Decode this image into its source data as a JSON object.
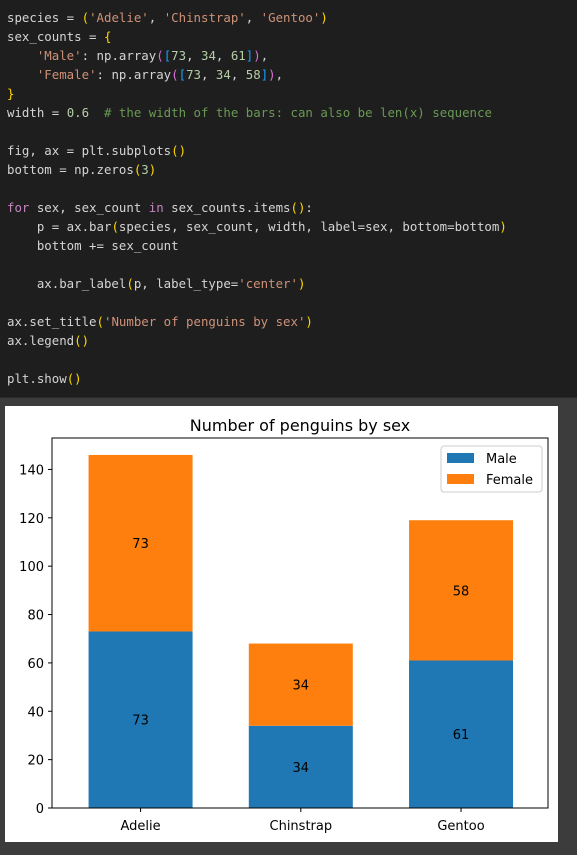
{
  "code": {
    "lines": [
      [
        [
          "plain",
          "species = "
        ],
        [
          "b1",
          "("
        ],
        [
          "str",
          "'Adelie'"
        ],
        [
          "plain",
          ", "
        ],
        [
          "str",
          "'Chinstrap'"
        ],
        [
          "plain",
          ", "
        ],
        [
          "str",
          "'Gentoo'"
        ],
        [
          "b1",
          ")"
        ]
      ],
      [
        [
          "plain",
          "sex_counts = "
        ],
        [
          "b1",
          "{"
        ]
      ],
      [
        [
          "plain",
          "    "
        ],
        [
          "str",
          "'Male'"
        ],
        [
          "plain",
          ": np.array"
        ],
        [
          "b2",
          "("
        ],
        [
          "b3",
          "["
        ],
        [
          "num",
          "73"
        ],
        [
          "plain",
          ", "
        ],
        [
          "num",
          "34"
        ],
        [
          "plain",
          ", "
        ],
        [
          "num",
          "61"
        ],
        [
          "b3",
          "]"
        ],
        [
          "b2",
          ")"
        ],
        [
          "plain",
          ","
        ]
      ],
      [
        [
          "plain",
          "    "
        ],
        [
          "str",
          "'Female'"
        ],
        [
          "plain",
          ": np.array"
        ],
        [
          "b2",
          "("
        ],
        [
          "b3",
          "["
        ],
        [
          "num",
          "73"
        ],
        [
          "plain",
          ", "
        ],
        [
          "num",
          "34"
        ],
        [
          "plain",
          ", "
        ],
        [
          "num",
          "58"
        ],
        [
          "b3",
          "]"
        ],
        [
          "b2",
          ")"
        ],
        [
          "plain",
          ","
        ]
      ],
      [
        [
          "b1",
          "}"
        ]
      ],
      [
        [
          "plain",
          "width = "
        ],
        [
          "num",
          "0.6"
        ],
        [
          "plain",
          "  "
        ],
        [
          "cmt",
          "# the width of the bars: can also be len(x) sequence"
        ]
      ],
      [],
      [
        [
          "plain",
          "fig, ax = plt.subplots"
        ],
        [
          "b1",
          "()"
        ]
      ],
      [
        [
          "plain",
          "bottom = np.zeros"
        ],
        [
          "b1",
          "("
        ],
        [
          "num",
          "3"
        ],
        [
          "b1",
          ")"
        ]
      ],
      [],
      [
        [
          "kw",
          "for"
        ],
        [
          "plain",
          " sex, sex_count "
        ],
        [
          "kw",
          "in"
        ],
        [
          "plain",
          " sex_counts.items"
        ],
        [
          "b1",
          "()"
        ],
        [
          "plain",
          ":"
        ]
      ],
      [
        [
          "plain",
          "    p = ax.bar"
        ],
        [
          "b1",
          "("
        ],
        [
          "plain",
          "species, sex_count, width, label=sex, bottom=bottom"
        ],
        [
          "b1",
          ")"
        ]
      ],
      [
        [
          "plain",
          "    bottom += sex_count"
        ]
      ],
      [],
      [
        [
          "plain",
          "    ax.bar_label"
        ],
        [
          "b1",
          "("
        ],
        [
          "plain",
          "p, label_type="
        ],
        [
          "str",
          "'center'"
        ],
        [
          "b1",
          ")"
        ]
      ],
      [],
      [
        [
          "plain",
          "ax.set_title"
        ],
        [
          "b1",
          "("
        ],
        [
          "str",
          "'Number of penguins by sex'"
        ],
        [
          "b1",
          ")"
        ]
      ],
      [
        [
          "plain",
          "ax.legend"
        ],
        [
          "b1",
          "()"
        ]
      ],
      [],
      [
        [
          "plain",
          "plt.show"
        ],
        [
          "b1",
          "()"
        ]
      ]
    ]
  },
  "chart_data": {
    "type": "bar",
    "title": "Number of penguins by sex",
    "categories": [
      "Adelie",
      "Chinstrap",
      "Gentoo"
    ],
    "stacked": true,
    "series": [
      {
        "name": "Male",
        "values": [
          73,
          34,
          61
        ],
        "color": "#1f77b4"
      },
      {
        "name": "Female",
        "values": [
          73,
          34,
          58
        ],
        "color": "#ff7f0e"
      }
    ],
    "ylim": [
      0,
      153
    ],
    "yticks": [
      0,
      20,
      40,
      60,
      80,
      100,
      120,
      140
    ],
    "legend_position": "top-right",
    "bar_labels": "center",
    "grid": false
  }
}
